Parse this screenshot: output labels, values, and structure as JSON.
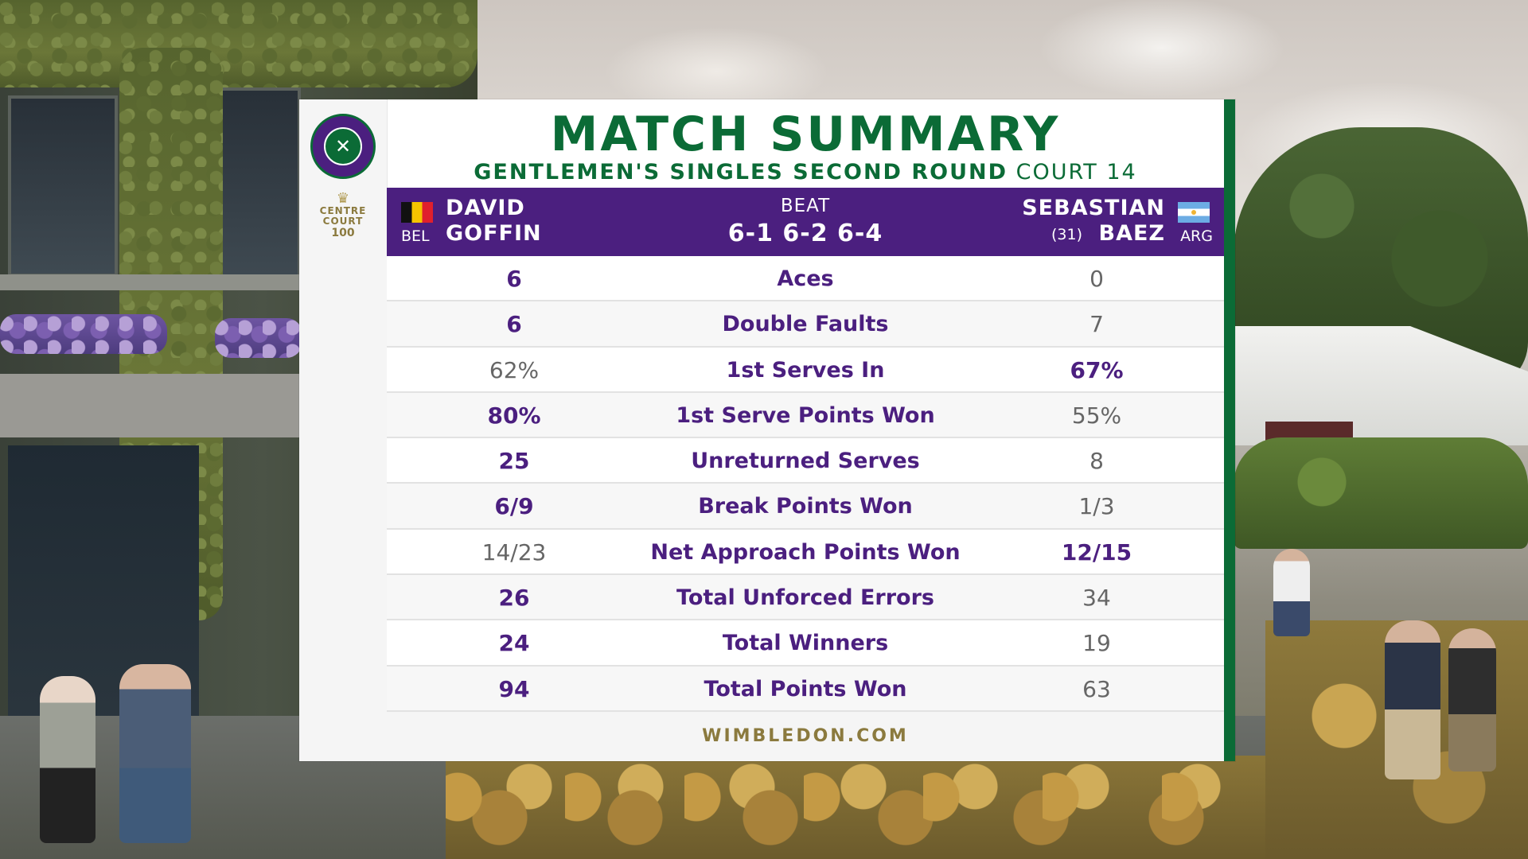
{
  "logo": {
    "icon": "wimbledon-crossed-rackets-icon",
    "glyph": "✕"
  },
  "centre_court": {
    "line1": "CENTRE",
    "line2": "COURT",
    "number": "100"
  },
  "title": "MATCH SUMMARY",
  "subtitle": {
    "event": "GENTLEMEN'S SINGLES SECOND ROUND",
    "court": "COURT 14"
  },
  "colors": {
    "purple": "#4b1f7f",
    "green": "#0b6b36",
    "gold": "#8b7a3e"
  },
  "players": {
    "left": {
      "first": "DAVID",
      "last": "GOFFIN",
      "country": "BEL",
      "seed": "",
      "flag": "belgium-flag-icon"
    },
    "right": {
      "first": "SEBASTIAN",
      "last": "BAEZ",
      "country": "ARG",
      "seed": "(31)",
      "flag": "argentina-flag-icon"
    }
  },
  "result": {
    "verb": "BEAT",
    "score": "6-1 6-2 6-4"
  },
  "stats": [
    {
      "label": "Aces",
      "left": "6",
      "right": "0",
      "winner": "left"
    },
    {
      "label": "Double Faults",
      "left": "6",
      "right": "7",
      "winner": "left"
    },
    {
      "label": "1st Serves In",
      "left": "62%",
      "right": "67%",
      "winner": "right"
    },
    {
      "label": "1st Serve Points Won",
      "left": "80%",
      "right": "55%",
      "winner": "left"
    },
    {
      "label": "Unreturned Serves",
      "left": "25",
      "right": "8",
      "winner": "left"
    },
    {
      "label": "Break Points Won",
      "left": "6/9",
      "right": "1/3",
      "winner": "left"
    },
    {
      "label": "Net Approach Points Won",
      "left": "14/23",
      "right": "12/15",
      "winner": "right"
    },
    {
      "label": "Total Unforced Errors",
      "left": "26",
      "right": "34",
      "winner": "left"
    },
    {
      "label": "Total Winners",
      "left": "24",
      "right": "19",
      "winner": "left"
    },
    {
      "label": "Total Points Won",
      "left": "94",
      "right": "63",
      "winner": "left"
    }
  ],
  "footer": "WIMBLEDON.COM"
}
